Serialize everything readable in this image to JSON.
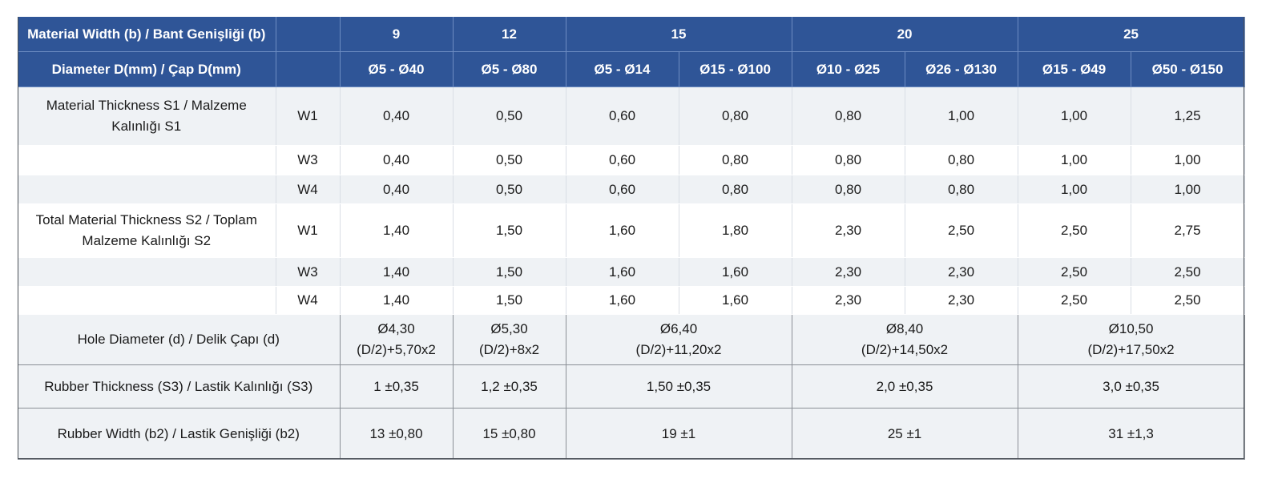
{
  "header": {
    "width_label": "Material Width (b) / Bant Genişliği (b)",
    "diameter_label": "Diameter D(mm) / Çap D(mm)",
    "widths": [
      "9",
      "12",
      "15",
      "20",
      "25"
    ],
    "diameters": [
      "Ø5 - Ø40",
      "Ø5 - Ø80",
      "Ø5 - Ø14",
      "Ø15 - Ø100",
      "Ø10 - Ø25",
      "Ø26 - Ø130",
      "Ø15 - Ø49",
      "Ø50 - Ø150"
    ]
  },
  "s1": {
    "label_line1": "Material Thickness S1 / Malzeme",
    "label_line2": "Kalınlığı S1",
    "rows": [
      {
        "type": "W1",
        "values": [
          "0,40",
          "0,50",
          "0,60",
          "0,80",
          "0,80",
          "1,00",
          "1,00",
          "1,25"
        ]
      },
      {
        "type": "W3",
        "values": [
          "0,40",
          "0,50",
          "0,60",
          "0,80",
          "0,80",
          "0,80",
          "1,00",
          "1,00"
        ]
      },
      {
        "type": "W4",
        "values": [
          "0,40",
          "0,50",
          "0,60",
          "0,80",
          "0,80",
          "0,80",
          "1,00",
          "1,00"
        ]
      }
    ]
  },
  "s2": {
    "label_line1": "Total Material Thickness S2 / Toplam",
    "label_line2": "Malzeme Kalınlığı S2",
    "rows": [
      {
        "type": "W1",
        "values": [
          "1,40",
          "1,50",
          "1,60",
          "1,80",
          "2,30",
          "2,50",
          "2,50",
          "2,75"
        ]
      },
      {
        "type": "W3",
        "values": [
          "1,40",
          "1,50",
          "1,60",
          "1,60",
          "2,30",
          "2,30",
          "2,50",
          "2,50"
        ]
      },
      {
        "type": "W4",
        "values": [
          "1,40",
          "1,50",
          "1,60",
          "1,60",
          "2,30",
          "2,30",
          "2,50",
          "2,50"
        ]
      }
    ]
  },
  "hole": {
    "label": "Hole Diameter (d) / Delik Çapı (d)",
    "values": [
      {
        "l1": "Ø4,30",
        "l2": "(D/2)+5,70x2"
      },
      {
        "l1": "Ø5,30",
        "l2": "(D/2)+8x2"
      },
      {
        "l1": "Ø6,40",
        "l2": "(D/2)+11,20x2"
      },
      {
        "l1": "Ø8,40",
        "l2": "(D/2)+14,50x2"
      },
      {
        "l1": "Ø10,50",
        "l2": "(D/2)+17,50x2"
      }
    ]
  },
  "rubber_thickness": {
    "label": "Rubber Thickness (S3) / Lastik Kalınlığı (S3)",
    "values": [
      "1 ±0,35",
      "1,2 ±0,35",
      "1,50 ±0,35",
      "2,0 ±0,35",
      "3,0 ±0,35"
    ]
  },
  "rubber_width": {
    "label": "Rubber Width (b2) / Lastik Genişliği (b2)",
    "values": [
      "13 ±0,80",
      "15 ±0,80",
      "19 ±1",
      "25 ±1",
      "31 ±1,3"
    ]
  }
}
